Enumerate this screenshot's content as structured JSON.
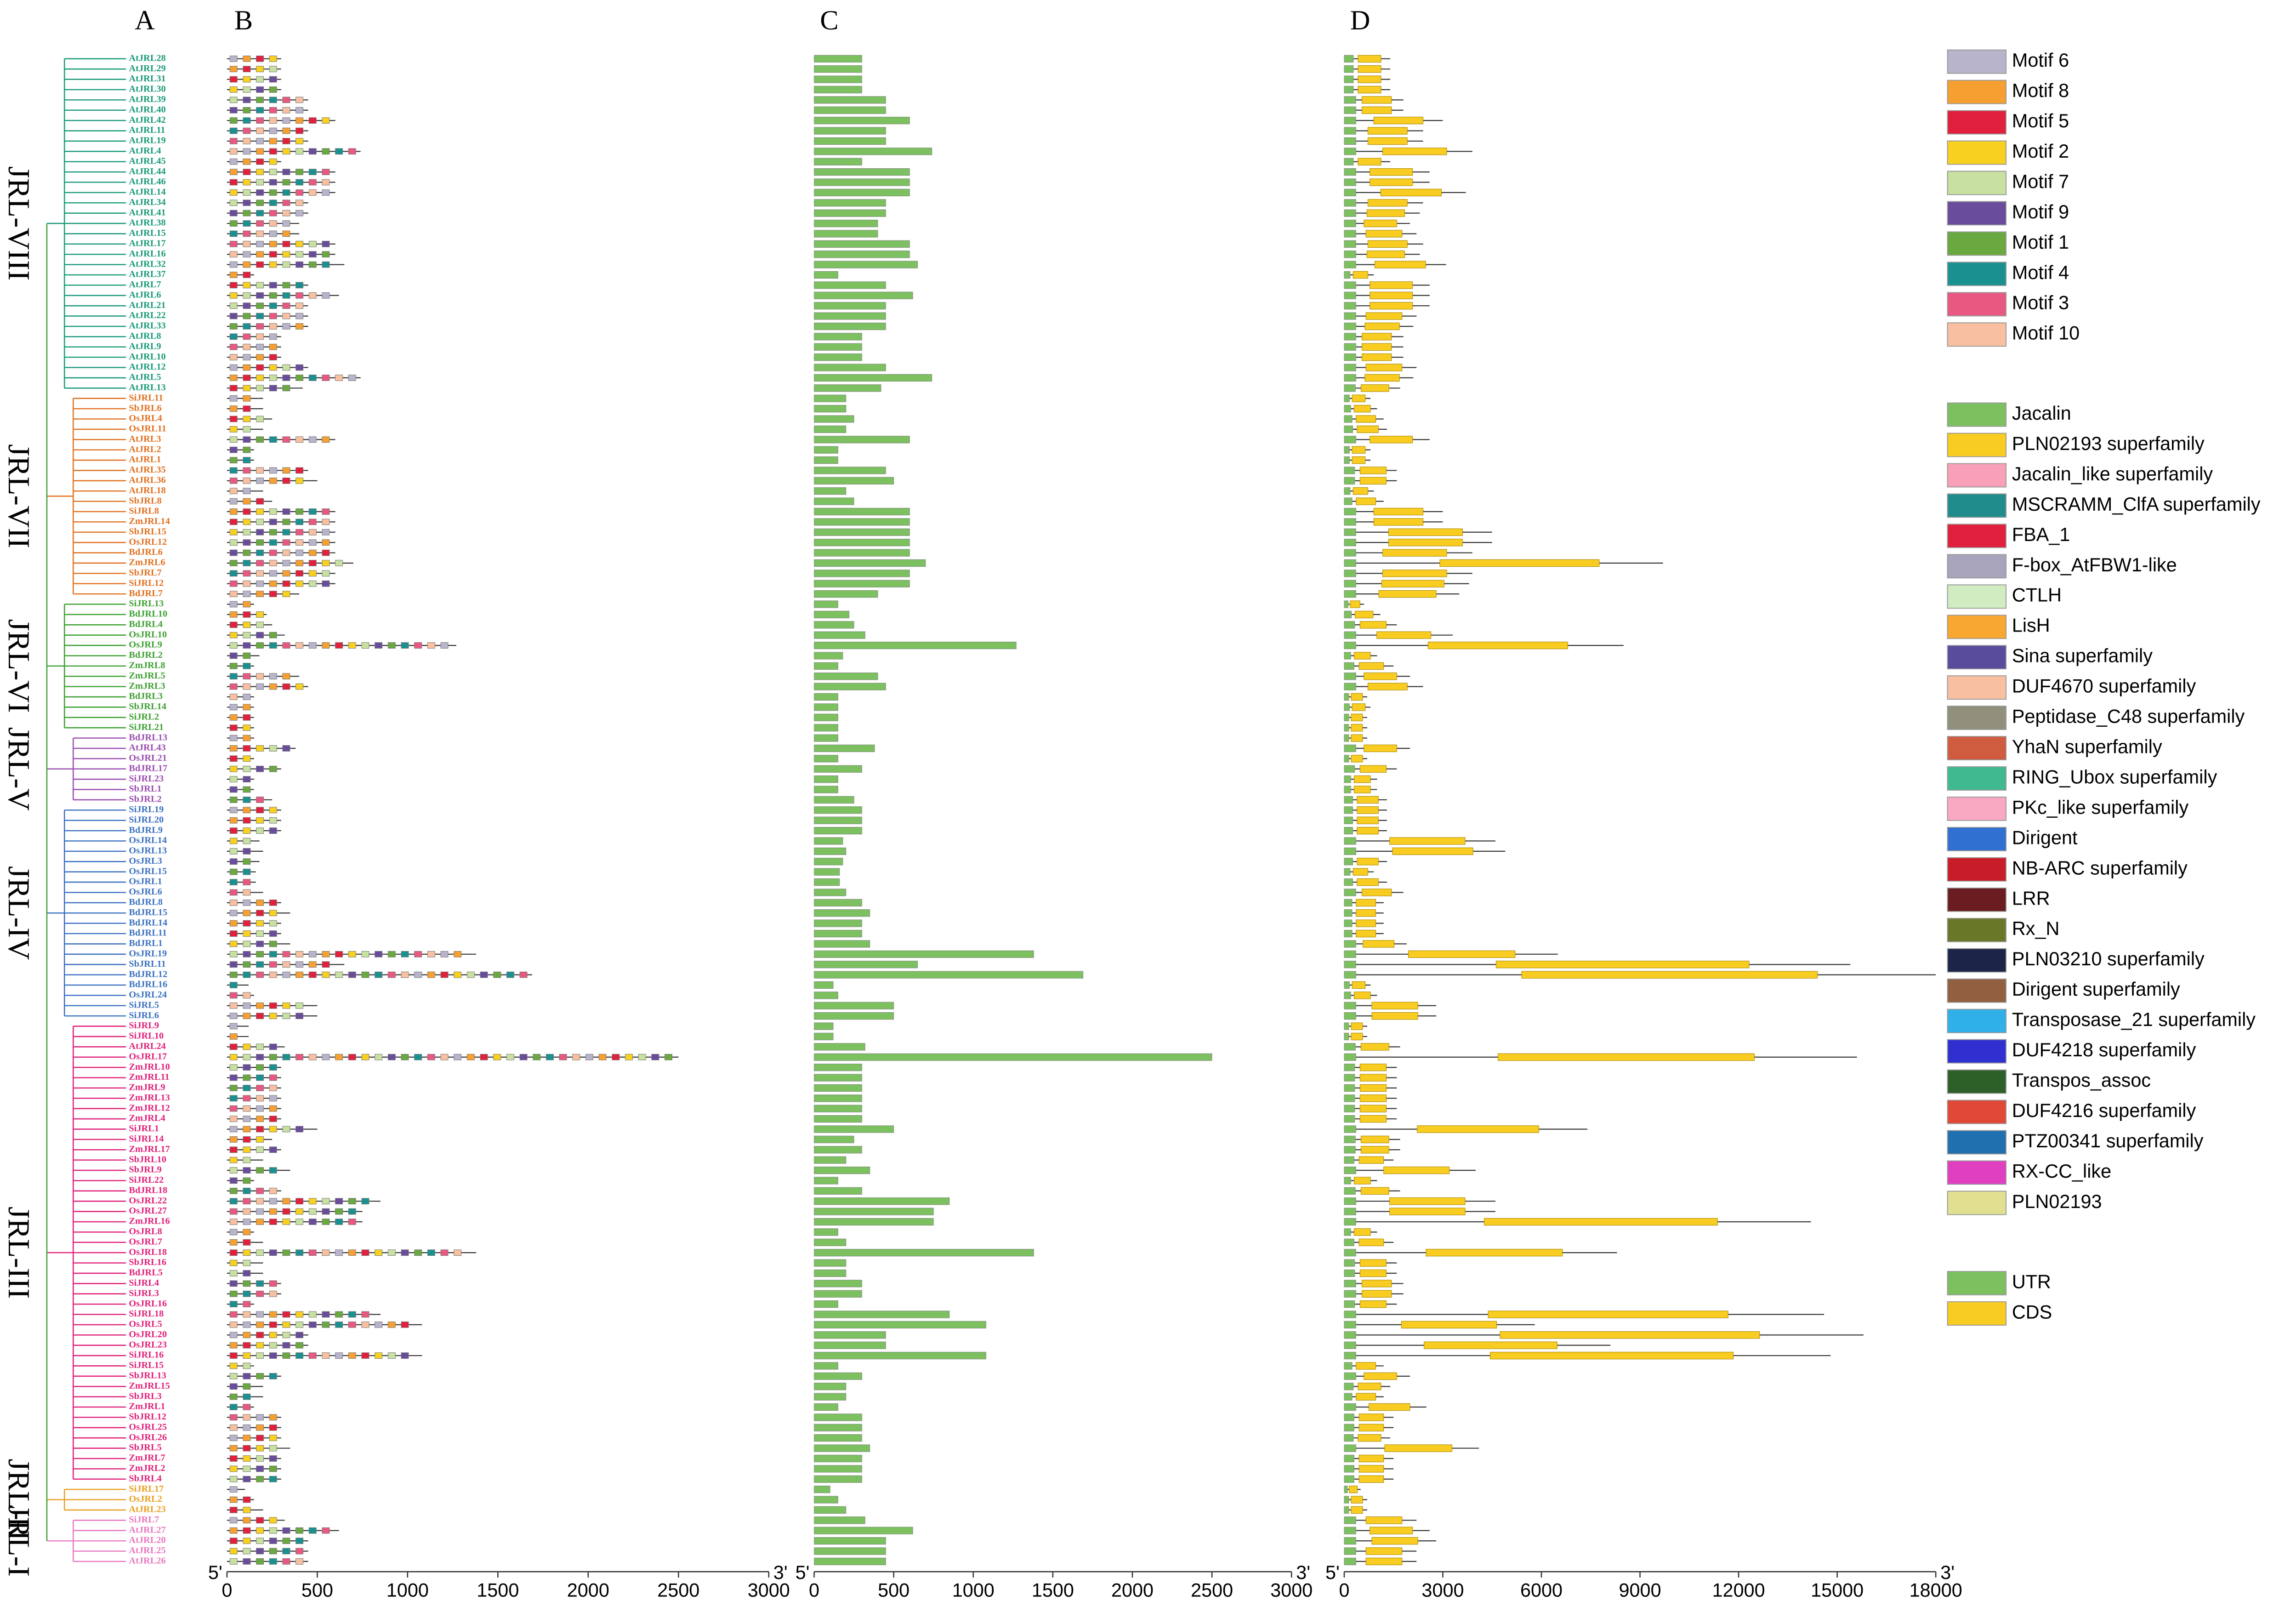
{
  "chart_data": {
    "type": "gene-structure",
    "panel_labels": [
      "A",
      "B",
      "C",
      "D"
    ],
    "groups": [
      {
        "name": "JRL-VIII",
        "color": "#1a9a7a",
        "genes": [
          "AtJRL28",
          "AtJRL29",
          "AtJRL31",
          "AtJRL30",
          "AtJRL39",
          "AtJRL40",
          "AtJRL42",
          "AtJRL11",
          "AtJRL19",
          "AtJRL4",
          "AtJRL45",
          "AtJRL44",
          "AtJRL46",
          "AtJRL14",
          "AtJRL34",
          "AtJRL41",
          "AtJRL38",
          "AtJRL15",
          "AtJRL17",
          "AtJRL16",
          "AtJRL32",
          "AtJRL37",
          "AtJRL7",
          "AtJRL6",
          "AtJRL21",
          "AtJRL22",
          "AtJRL33",
          "AtJRL8",
          "AtJRL9",
          "AtJRL10",
          "AtJRL12",
          "AtJRL5",
          "AtJRL13"
        ],
        "protein_length": [
          300,
          300,
          300,
          300,
          450,
          450,
          600,
          450,
          450,
          740,
          300,
          600,
          600,
          600,
          450,
          450,
          400,
          400,
          600,
          600,
          650,
          150,
          450,
          620,
          450,
          450,
          450,
          300,
          300,
          300,
          450,
          740,
          420
        ],
        "gene_length": [
          1400,
          1400,
          1400,
          1400,
          1800,
          1800,
          3000,
          2400,
          2400,
          3900,
          1400,
          2600,
          2600,
          3700,
          2400,
          2300,
          2000,
          2200,
          2400,
          2300,
          3100,
          900,
          2600,
          2600,
          2600,
          2200,
          2100,
          1800,
          1800,
          1800,
          2200,
          2100,
          1700
        ]
      },
      {
        "name": "JRL-VII",
        "color": "#e07020",
        "genes": [
          "SiJRL11",
          "SbJRL6",
          "OsJRL4",
          "OsJRL11",
          "AtJRL3",
          "AtJRL2",
          "AtJRL1",
          "AtJRL35",
          "AtJRL36",
          "AtJRL18",
          "SbJRL8",
          "SiJRL8",
          "ZmJRL14",
          "SbJRL15",
          "OsJRL12",
          "BdJRL6",
          "ZmJRL6",
          "SbJRL7",
          "SiJRL12",
          "BdJRL7"
        ],
        "protein_length": [
          200,
          200,
          250,
          200,
          600,
          150,
          150,
          450,
          500,
          200,
          250,
          600,
          600,
          600,
          600,
          600,
          700,
          600,
          600,
          400
        ],
        "gene_length": [
          800,
          1000,
          1200,
          1300,
          2600,
          800,
          800,
          1600,
          1600,
          900,
          1200,
          3000,
          3000,
          4500,
          4500,
          3900,
          9700,
          3900,
          3800,
          3500
        ]
      },
      {
        "name": "JRL-VI",
        "color": "#3ca030",
        "genes": [
          "SiJRL13",
          "BdJRL10",
          "BdJRL4",
          "OsJRL10",
          "OsJRL9",
          "BdJRL2",
          "ZmJRL8",
          "ZmJRL5",
          "ZmJRL3",
          "BdJRL3",
          "SbJRL14",
          "SiJRL2",
          "SiJRL21"
        ],
        "protein_length": [
          150,
          220,
          250,
          320,
          1270,
          180,
          150,
          400,
          450,
          150,
          150,
          150,
          150
        ],
        "gene_length": [
          600,
          1100,
          1600,
          3300,
          8500,
          1000,
          1500,
          2000,
          2400,
          700,
          800,
          700,
          700
        ]
      },
      {
        "name": "JRL-V",
        "color": "#9a4cb0",
        "genes": [
          "BdJRL13",
          "AtJRL43",
          "OsJRL21",
          "BdJRL17",
          "SiJRL23",
          "SbJRL1",
          "SbJRL2"
        ],
        "protein_length": [
          150,
          380,
          150,
          300,
          150,
          150,
          250
        ],
        "gene_length": [
          700,
          2000,
          700,
          1600,
          1000,
          1000,
          1300
        ]
      },
      {
        "name": "JRL-IV",
        "color": "#3a70c0",
        "genes": [
          "SiJRL19",
          "SiJRL20",
          "BdJRL9",
          "OsJRL14",
          "OsJRL13",
          "OsJRL3",
          "OsJRL15",
          "OsJRL1",
          "OsJRL6",
          "BdJRL8",
          "BdJRL15",
          "BdJRL14",
          "BdJRL11",
          "BdJRL1",
          "OsJRL19",
          "SbJRL11",
          "BdJRL12",
          "BdJRL16",
          "OsJRL24",
          "SiJRL5",
          "SiJRL6"
        ],
        "protein_length": [
          300,
          300,
          300,
          180,
          200,
          180,
          160,
          160,
          200,
          300,
          350,
          300,
          300,
          350,
          1380,
          650,
          1690,
          120,
          150,
          500,
          500
        ],
        "gene_length": [
          1300,
          1300,
          1300,
          4600,
          4900,
          1300,
          900,
          1300,
          1800,
          1200,
          1200,
          1200,
          1200,
          1900,
          6500,
          15400,
          18000,
          800,
          1000,
          2800,
          2800
        ]
      },
      {
        "name": "JRL-III",
        "color": "#e0207a",
        "genes": [
          "SiJRL9",
          "SiJRL10",
          "AtJRL24",
          "OsJRL17",
          "ZmJRL10",
          "ZmJRL11",
          "ZmJRL9",
          "ZmJRL13",
          "ZmJRL12",
          "ZmJRL4",
          "SiJRL1",
          "SiJRL14",
          "ZmJRL17",
          "SbJRL10",
          "SbJRL9",
          "SiJRL22",
          "BdJRL18",
          "OsJRL22",
          "OsJRL27",
          "ZmJRL16",
          "OsJRL8",
          "OsJRL7",
          "OsJRL18",
          "SbJRL16",
          "BdJRL5",
          "SiJRL4",
          "SiJRL3",
          "OsJRL16",
          "SiJRL18",
          "OsJRL5",
          "OsJRL20",
          "OsJRL23",
          "SiJRL16",
          "SiJRL15",
          "SbJRL13",
          "ZmJRL15",
          "SbJRL3",
          "ZmJRL1",
          "SbJRL12",
          "OsJRL25",
          "OsJRL26",
          "SbJRL5",
          "ZmJRL7",
          "ZmJRL2",
          "SbJRL4"
        ],
        "protein_length": [
          120,
          120,
          320,
          2500,
          300,
          300,
          300,
          300,
          300,
          300,
          500,
          250,
          300,
          200,
          350,
          150,
          300,
          850,
          750,
          750,
          150,
          200,
          1380,
          200,
          200,
          300,
          300,
          150,
          850,
          1080,
          450,
          450,
          1080,
          150,
          300,
          200,
          200,
          150,
          300,
          300,
          300,
          350,
          300,
          300,
          300
        ],
        "gene_length": [
          700,
          700,
          1700,
          15600,
          1600,
          1600,
          1600,
          1600,
          1600,
          1600,
          7400,
          1700,
          1700,
          1500,
          4000,
          1000,
          1700,
          4600,
          4600,
          14200,
          1000,
          1500,
          8300,
          1600,
          1600,
          1800,
          1800,
          1600,
          14600,
          5800,
          15800,
          8100,
          14800,
          1200,
          2000,
          1400,
          1200,
          2500,
          1500,
          1500,
          1400,
          4100,
          1500,
          1500,
          1500
        ]
      },
      {
        "name": "JRL-II",
        "color": "#e8a020",
        "genes": [
          "SiJRL17",
          "OsJRL2",
          "AtJRL23"
        ],
        "protein_length": [
          100,
          150,
          200
        ],
        "gene_length": [
          500,
          700,
          700
        ]
      },
      {
        "name": "JRL-I",
        "color": "#e878c0",
        "genes": [
          "SiJRL7",
          "AtJRL27",
          "AtJRL20",
          "AtJRL25",
          "AtJRL26"
        ],
        "protein_length": [
          320,
          620,
          450,
          450,
          450
        ],
        "gene_length": [
          2200,
          2600,
          2800,
          2200,
          2200
        ]
      }
    ],
    "protein_axis": {
      "xlim": [
        0,
        3000
      ],
      "xticks": [
        0,
        500,
        1000,
        1500,
        2000,
        2500,
        3000
      ],
      "start_label": "5'",
      "end_label": "3'"
    },
    "gene_axis": {
      "xlim": [
        0,
        18000
      ],
      "xticks": [
        0,
        3000,
        6000,
        9000,
        12000,
        15000,
        18000
      ],
      "start_label": "5'",
      "end_label": "3'"
    },
    "motif_legend": [
      {
        "name": "Motif 6",
        "color": "#b8b4cc"
      },
      {
        "name": "Motif 8",
        "color": "#f5a030"
      },
      {
        "name": "Motif 5",
        "color": "#e0203c"
      },
      {
        "name": "Motif 2",
        "color": "#f8d020"
      },
      {
        "name": "Motif 7",
        "color": "#c8e0a0"
      },
      {
        "name": "Motif 9",
        "color": "#6a4c9c"
      },
      {
        "name": "Motif 1",
        "color": "#6aa840"
      },
      {
        "name": "Motif 4",
        "color": "#1a9090"
      },
      {
        "name": "Motif 3",
        "color": "#e85880"
      },
      {
        "name": "Motif 10",
        "color": "#f8c0a0"
      }
    ],
    "domain_legend": [
      {
        "name": "Jacalin",
        "color": "#7cc060"
      },
      {
        "name": "PLN02193 superfamily",
        "color": "#f8cc20"
      },
      {
        "name": "Jacalin_like superfamily",
        "color": "#f8a0b8"
      },
      {
        "name": "MSCRAMM_ClfA superfamily",
        "color": "#208c8c"
      },
      {
        "name": "FBA_1",
        "color": "#e0203c"
      },
      {
        "name": "F-box_AtFBW1-like",
        "color": "#a8a4bc"
      },
      {
        "name": "CTLH",
        "color": "#d0ecc0"
      },
      {
        "name": "LisH",
        "color": "#f8a830"
      },
      {
        "name": "Sina superfamily",
        "color": "#5a4c9c"
      },
      {
        "name": "DUF4670 superfamily",
        "color": "#f8c0a0"
      },
      {
        "name": "Peptidase_C48 superfamily",
        "color": "#90907c"
      },
      {
        "name": "YhaN superfamily",
        "color": "#d05c40"
      },
      {
        "name": "RING_Ubox superfamily",
        "color": "#40b890"
      },
      {
        "name": "PKc_like superfamily",
        "color": "#f8a8c0"
      },
      {
        "name": "Dirigent",
        "color": "#3070d0"
      },
      {
        "name": "NB-ARC superfamily",
        "color": "#c81c28"
      },
      {
        "name": "LRR",
        "color": "#6a1c20"
      },
      {
        "name": "Rx_N",
        "color": "#687828"
      },
      {
        "name": "PLN03210 superfamily",
        "color": "#1c2448"
      },
      {
        "name": "Dirigent superfamily",
        "color": "#906040"
      },
      {
        "name": "Transposase_21 superfamily",
        "color": "#30b0e8"
      },
      {
        "name": "DUF4218 superfamily",
        "color": "#3030d0"
      },
      {
        "name": "Transpos_assoc",
        "color": "#2c6028"
      },
      {
        "name": "DUF4216 superfamily",
        "color": "#e04838"
      },
      {
        "name": "PTZ00341 superfamily",
        "color": "#2070b0"
      },
      {
        "name": "RX-CC_like",
        "color": "#e040c0"
      },
      {
        "name": "PLN02193",
        "color": "#e0e090"
      }
    ],
    "structure_legend": [
      {
        "name": "UTR",
        "color": "#7cc060"
      },
      {
        "name": "CDS",
        "color": "#f8cc20"
      }
    ]
  }
}
